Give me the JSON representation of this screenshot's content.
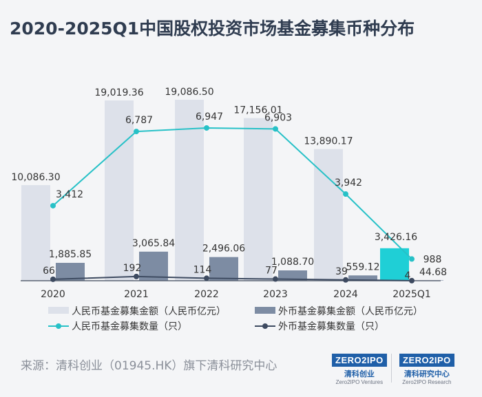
{
  "title": "2020-2025Q1中国股权投资市场基金募集币种分布",
  "source": "来源：清科创业（01945.HK）旗下清科研究中心",
  "logos": [
    {
      "mark": "ZERO2IPO",
      "cn": "清科创业",
      "en": "Zero2IPO Ventures"
    },
    {
      "mark": "ZERO2IPO",
      "cn": "清科研究中心",
      "en": "Zero2IPO Research"
    }
  ],
  "colors": {
    "rmb_amount": "#dde1ea",
    "fx_amount": "#7d8ca3",
    "rmb_amount_last": "#1fcfd6",
    "rmb_count_line": "#27c1c7",
    "fx_count_line": "#3d4a60",
    "axis": "#5a6372"
  },
  "chart_data": {
    "type": "bar+line",
    "categories": [
      "2020",
      "2021",
      "2022",
      "2023",
      "2024",
      "2025Q1"
    ],
    "series": [
      {
        "name": "人民币基金募集金额（人民币亿元）",
        "kind": "bar",
        "axis": "amount",
        "values": [
          10086.3,
          19019.36,
          19086.5,
          17156.01,
          13890.17,
          3426.16
        ],
        "labels": [
          "10,086.30",
          "19,019.36",
          "19,086.50",
          "17,156.01",
          "13,890.17",
          "3,426.16"
        ]
      },
      {
        "name": "外币基金募集金额（人民币亿元）",
        "kind": "bar",
        "axis": "amount",
        "values": [
          1885.85,
          3065.84,
          2496.06,
          1088.7,
          559.12,
          44.68
        ],
        "labels": [
          "1,885.85",
          "3,065.84",
          "2,496.06",
          "1,088.70",
          "559.12",
          "44.68"
        ]
      },
      {
        "name": "人民币基金募集数量（只）",
        "kind": "line",
        "axis": "count",
        "values": [
          3412,
          6787,
          6947,
          6903,
          3942,
          988
        ],
        "labels": [
          "3,412",
          "6,787",
          "6,947",
          "6,903",
          "3,942",
          "988"
        ]
      },
      {
        "name": "外币基金募集数量（只）",
        "kind": "line",
        "axis": "count",
        "values": [
          66,
          192,
          114,
          77,
          39,
          4
        ],
        "labels": [
          "66",
          "192",
          "114",
          "77",
          "39",
          "4"
        ]
      }
    ],
    "amount_range": [
      0,
      22500
    ],
    "count_range": [
      0,
      9700
    ]
  }
}
